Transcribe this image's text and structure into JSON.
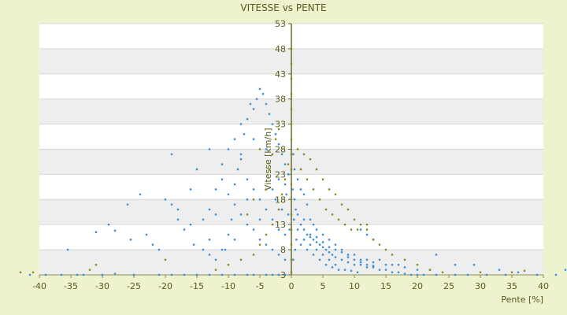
{
  "chart_data": {
    "type": "scatter",
    "title": "VITESSE vs PENTE",
    "xlabel": "Pente [%]",
    "ylabel": "Vitesse [km/h]",
    "xlim": [
      -40,
      40
    ],
    "ylim": [
      3,
      53
    ],
    "xticks": [
      -40,
      -35,
      -30,
      -25,
      -20,
      -15,
      -10,
      -5,
      0,
      5,
      10,
      15,
      20,
      25,
      30,
      35,
      40
    ],
    "yticks": [
      3,
      8,
      13,
      18,
      23,
      28,
      33,
      38,
      43,
      48,
      53
    ],
    "grid": true,
    "band_colors": [
      "#ffffff",
      "#eeeeee"
    ],
    "series": [
      {
        "color": "#3a8fd8",
        "points": [
          [
            -41.5,
            3
          ],
          [
            -39,
            3
          ],
          [
            -36.5,
            3
          ],
          [
            -34,
            3
          ],
          [
            -33,
            3
          ],
          [
            -30,
            3
          ],
          [
            -28,
            3.2
          ],
          [
            -25,
            3
          ],
          [
            -21,
            3
          ],
          [
            -19,
            3
          ],
          [
            -17,
            3
          ],
          [
            -15,
            3
          ],
          [
            -13,
            3
          ],
          [
            -11,
            3
          ],
          [
            -9,
            3
          ],
          [
            -7,
            3
          ],
          [
            -6,
            3
          ],
          [
            -4,
            3
          ],
          [
            -3,
            3
          ],
          [
            -2,
            3
          ],
          [
            -1,
            3
          ],
          [
            -35.5,
            8
          ],
          [
            -31,
            11.5
          ],
          [
            -28,
            11.8
          ],
          [
            -25.5,
            10
          ],
          [
            -23,
            11
          ],
          [
            -22,
            9
          ],
          [
            -21,
            8
          ],
          [
            -20,
            18
          ],
          [
            -19,
            17
          ],
          [
            -18,
            16
          ],
          [
            -17,
            12
          ],
          [
            -16,
            13
          ],
          [
            -15.5,
            9
          ],
          [
            -14,
            8
          ],
          [
            -13,
            7
          ],
          [
            -12,
            6
          ],
          [
            -10.5,
            8
          ],
          [
            -10,
            11
          ],
          [
            -9.5,
            14
          ],
          [
            -9,
            21
          ],
          [
            -8.5,
            24
          ],
          [
            -8,
            27
          ],
          [
            -7.5,
            31
          ],
          [
            -7,
            34
          ],
          [
            -6.5,
            37
          ],
          [
            -6,
            36
          ],
          [
            -5.5,
            38
          ],
          [
            -5,
            40
          ],
          [
            -4.5,
            39
          ],
          [
            -4,
            37
          ],
          [
            -3.5,
            35
          ],
          [
            -3,
            33
          ],
          [
            -2.5,
            31
          ],
          [
            -2,
            29
          ],
          [
            -1.5,
            27
          ],
          [
            -1,
            25
          ],
          [
            -0.5,
            23
          ],
          [
            -12,
            20
          ],
          [
            -11,
            22
          ],
          [
            -10,
            19
          ],
          [
            -9,
            17
          ],
          [
            -8,
            15
          ],
          [
            -7,
            13
          ],
          [
            -6,
            12
          ],
          [
            -5,
            10
          ],
          [
            -4,
            9
          ],
          [
            -3,
            8
          ],
          [
            -2,
            7
          ],
          [
            -1,
            6
          ],
          [
            -14,
            14
          ],
          [
            -13,
            16
          ],
          [
            -12,
            15
          ],
          [
            -11,
            25
          ],
          [
            -10,
            28
          ],
          [
            -9,
            30
          ],
          [
            -8,
            26
          ],
          [
            -7,
            22
          ],
          [
            -6,
            20
          ],
          [
            -5,
            18
          ],
          [
            -4,
            16
          ],
          [
            -3,
            14
          ],
          [
            -2,
            12
          ],
          [
            -1,
            11
          ],
          [
            -3,
            20
          ],
          [
            -2,
            22
          ],
          [
            -1,
            21
          ],
          [
            -2.5,
            18
          ],
          [
            -1.5,
            16
          ],
          [
            -0.8,
            19
          ],
          [
            -0.5,
            15
          ],
          [
            -0.3,
            12
          ],
          [
            -19,
            27
          ],
          [
            -15,
            24
          ],
          [
            -13,
            28
          ],
          [
            -16,
            20
          ],
          [
            -18,
            14
          ],
          [
            -24,
            19
          ],
          [
            -26,
            17
          ],
          [
            -29,
            13
          ],
          [
            -8,
            33
          ],
          [
            -6,
            30
          ],
          [
            -4,
            28
          ],
          [
            -7,
            18
          ],
          [
            -5,
            14
          ],
          [
            -9,
            10
          ],
          [
            -11,
            8
          ],
          [
            -13,
            10
          ],
          [
            0.5,
            18
          ],
          [
            1,
            15
          ],
          [
            1.5,
            13
          ],
          [
            2,
            12
          ],
          [
            2.5,
            11
          ],
          [
            3,
            10.5
          ],
          [
            3.5,
            10
          ],
          [
            4,
            9.5
          ],
          [
            4.5,
            9
          ],
          [
            5,
            8.5
          ],
          [
            5.5,
            8
          ],
          [
            6,
            7.5
          ],
          [
            6.5,
            7
          ],
          [
            7,
            6.5
          ],
          [
            8,
            6
          ],
          [
            9,
            5.5
          ],
          [
            10,
            5
          ],
          [
            11,
            5
          ],
          [
            12,
            4.5
          ],
          [
            13,
            4.5
          ],
          [
            14,
            4
          ],
          [
            15,
            4
          ],
          [
            16,
            3.5
          ],
          [
            17,
            3.5
          ],
          [
            18,
            3.2
          ],
          [
            19,
            3
          ],
          [
            20,
            3
          ],
          [
            21,
            3
          ],
          [
            23,
            3
          ],
          [
            26,
            3
          ],
          [
            28,
            3
          ],
          [
            31,
            3
          ],
          [
            34,
            3
          ],
          [
            36,
            3.5
          ],
          [
            39,
            3
          ],
          [
            42,
            3
          ],
          [
            44,
            4
          ],
          [
            1,
            22
          ],
          [
            1.5,
            20
          ],
          [
            2,
            19
          ],
          [
            2.5,
            17
          ],
          [
            3,
            14
          ],
          [
            3.5,
            13
          ],
          [
            4,
            12
          ],
          [
            5,
            11
          ],
          [
            6,
            10
          ],
          [
            7,
            9
          ],
          [
            8,
            8
          ],
          [
            9,
            7
          ],
          [
            10,
            7
          ],
          [
            11,
            6
          ],
          [
            12,
            6
          ],
          [
            13,
            5.5
          ],
          [
            14,
            6
          ],
          [
            15,
            5
          ],
          [
            16,
            5
          ],
          [
            17,
            5
          ],
          [
            18,
            4.5
          ],
          [
            20,
            4
          ],
          [
            22,
            4
          ],
          [
            23,
            7
          ],
          [
            26,
            5
          ],
          [
            29,
            5
          ],
          [
            33,
            4
          ],
          [
            1,
            12
          ],
          [
            2,
            10
          ],
          [
            3,
            9
          ],
          [
            4,
            8
          ],
          [
            5,
            7
          ],
          [
            6,
            6
          ],
          [
            7,
            5
          ],
          [
            1.5,
            9
          ],
          [
            2.5,
            8
          ],
          [
            3.5,
            7
          ],
          [
            4.5,
            6
          ],
          [
            5.5,
            5
          ],
          [
            6.5,
            4.5
          ],
          [
            7.5,
            4
          ],
          [
            8.5,
            4
          ],
          [
            9.5,
            3.8
          ],
          [
            10.5,
            3.5
          ],
          [
            0.3,
            6
          ],
          [
            0.6,
            8
          ],
          [
            0.8,
            10
          ],
          [
            0.4,
            14
          ],
          [
            0.7,
            16
          ],
          [
            0.2,
            20
          ],
          [
            0.5,
            24
          ],
          [
            0.3,
            27
          ],
          [
            2,
            14
          ],
          [
            3,
            11
          ],
          [
            4,
            10.5
          ],
          [
            5,
            9.5
          ],
          [
            6,
            8.5
          ],
          [
            7,
            8
          ],
          [
            8,
            7.5
          ],
          [
            9,
            6.5
          ],
          [
            10,
            6
          ],
          [
            11,
            5.5
          ],
          [
            12,
            5
          ],
          [
            13,
            4.8
          ],
          [
            11,
            12
          ],
          [
            12,
            11
          ],
          [
            13,
            10
          ]
        ]
      },
      {
        "color": "#8a8a1e",
        "points": [
          [
            -43,
            3.5
          ],
          [
            -41,
            3.5
          ],
          [
            -32,
            4
          ],
          [
            -31,
            5
          ],
          [
            -20,
            6
          ],
          [
            -12,
            4
          ],
          [
            -10,
            5
          ],
          [
            -8,
            6
          ],
          [
            -6,
            7
          ],
          [
            -5,
            9
          ],
          [
            -4,
            11
          ],
          [
            -3,
            13
          ],
          [
            -2,
            16
          ],
          [
            -1.5,
            19
          ],
          [
            -1,
            22
          ],
          [
            -0.5,
            25
          ],
          [
            -4,
            20
          ],
          [
            -3.5,
            24
          ],
          [
            -3,
            27
          ],
          [
            -2.5,
            30
          ],
          [
            -2,
            32
          ],
          [
            -5,
            28
          ],
          [
            -6,
            18
          ],
          [
            -7,
            15
          ],
          [
            0,
            33
          ],
          [
            0,
            36
          ],
          [
            0,
            39
          ],
          [
            0,
            42
          ],
          [
            0,
            45
          ],
          [
            0,
            48
          ],
          [
            0,
            30
          ],
          [
            0,
            27
          ],
          [
            0,
            24
          ],
          [
            0,
            21
          ],
          [
            0,
            18
          ],
          [
            0,
            15
          ],
          [
            0,
            12
          ],
          [
            0,
            9
          ],
          [
            0,
            6
          ],
          [
            0,
            3.5
          ],
          [
            1,
            28
          ],
          [
            2,
            27
          ],
          [
            3,
            26
          ],
          [
            4,
            24
          ],
          [
            5,
            22
          ],
          [
            6,
            20
          ],
          [
            7,
            19
          ],
          [
            8,
            17
          ],
          [
            9,
            16
          ],
          [
            10,
            14
          ],
          [
            11,
            13
          ],
          [
            12,
            12
          ],
          [
            13,
            10
          ],
          [
            14,
            9
          ],
          [
            15,
            8
          ],
          [
            16,
            7
          ],
          [
            18,
            6
          ],
          [
            20,
            5
          ],
          [
            22,
            4
          ],
          [
            24,
            3.5
          ],
          [
            30,
            3.5
          ],
          [
            35,
            3.5
          ],
          [
            37,
            3.8
          ],
          [
            1.5,
            24
          ],
          [
            2.5,
            22
          ],
          [
            3.5,
            20
          ],
          [
            4.5,
            18
          ],
          [
            5.5,
            16
          ],
          [
            6.5,
            15
          ],
          [
            7.5,
            14
          ],
          [
            8.5,
            13
          ],
          [
            9.5,
            12
          ],
          [
            10.5,
            12
          ],
          [
            12,
            13
          ]
        ]
      }
    ]
  }
}
